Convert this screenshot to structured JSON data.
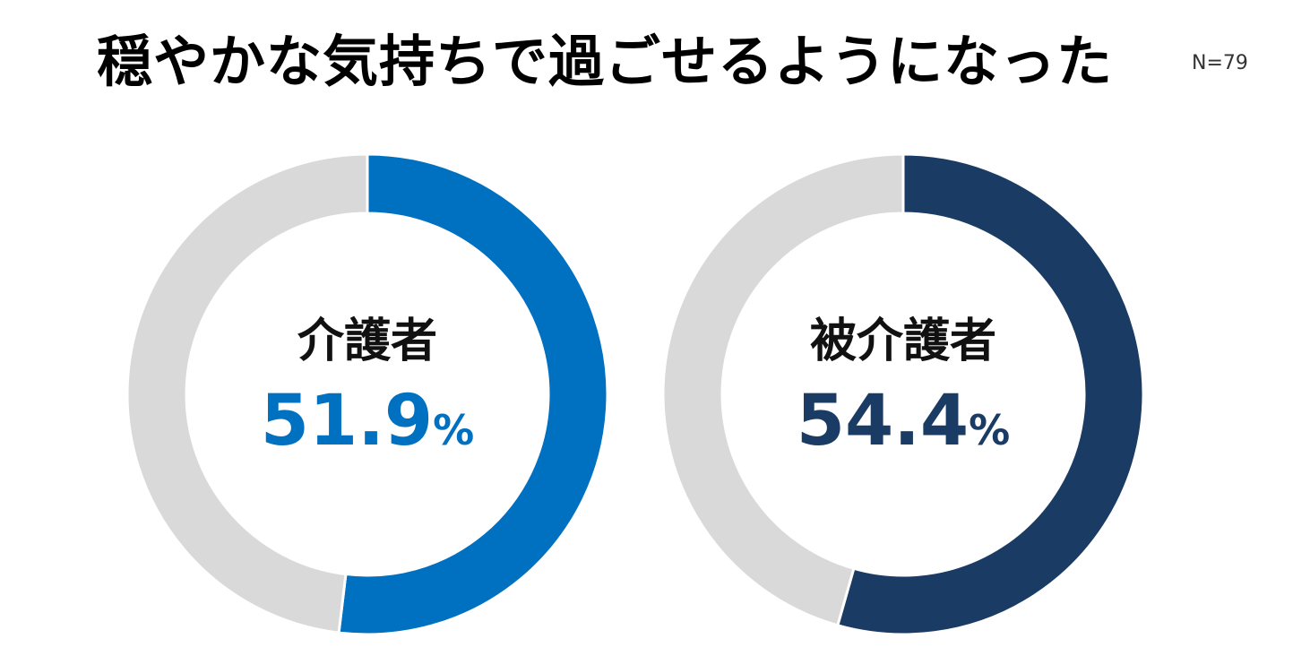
{
  "chart_data": [
    {
      "type": "pie",
      "title": "穏やかな気持ちで過ごせるようになった",
      "annotation": "N=79",
      "category_label": "介護者",
      "value_display": "51.9",
      "unit": "%",
      "slices": [
        {
          "label": "介護者",
          "value": 51.9,
          "color": "#0070C0"
        },
        {
          "label": "",
          "value": 48.1,
          "color": "#D9D9D9"
        }
      ]
    },
    {
      "type": "pie",
      "title": "穏やかな気持ちで過ごせるようになった",
      "annotation": "N=79",
      "category_label": "被介護者",
      "value_display": "54.4",
      "unit": "%",
      "slices": [
        {
          "label": "被介護者",
          "value": 54.4,
          "color": "#1A3B63"
        },
        {
          "label": "",
          "value": 45.6,
          "color": "#D9D9D9"
        }
      ]
    }
  ]
}
